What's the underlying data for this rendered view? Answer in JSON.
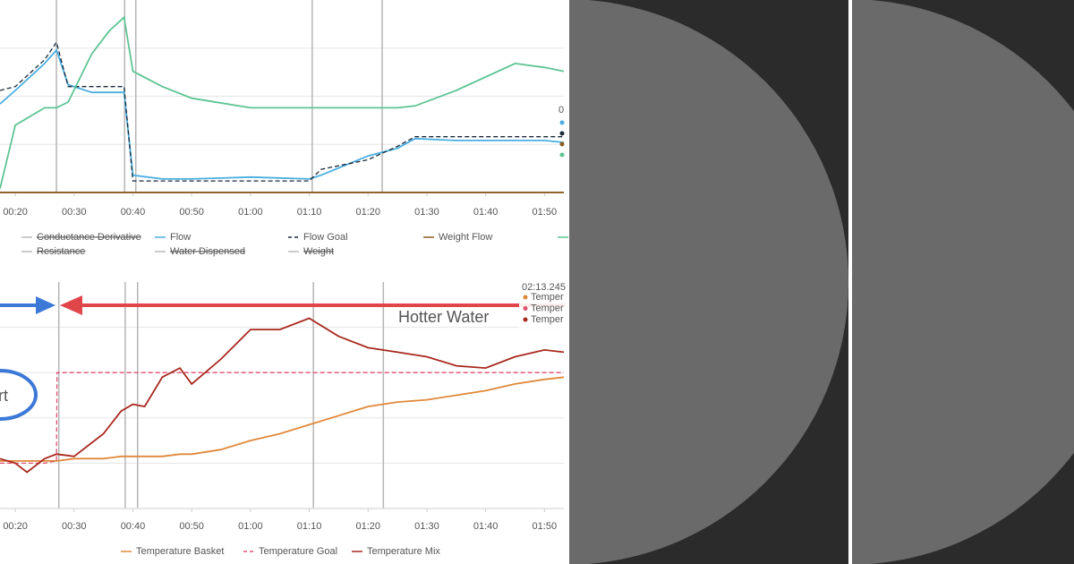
{
  "chart_data": [
    {
      "type": "line",
      "x": [
        17.4,
        20,
        25,
        27,
        29,
        33,
        36,
        38.5,
        40,
        45,
        50,
        60,
        70,
        72,
        80,
        85,
        88,
        95,
        100,
        105,
        110,
        113.3
      ],
      "xlim": [
        17.4,
        113.3
      ],
      "ylim": [
        0,
        100
      ],
      "ygrid": [
        25,
        50,
        75
      ],
      "xticks": [
        {
          "value": 20,
          "label": "00:20"
        },
        {
          "value": 30,
          "label": "00:30"
        },
        {
          "value": 40,
          "label": "00:40"
        },
        {
          "value": 50,
          "label": "00:50"
        },
        {
          "value": 60,
          "label": "01:00"
        },
        {
          "value": 70,
          "label": "01:10"
        },
        {
          "value": 80,
          "label": "01:20"
        },
        {
          "value": 90,
          "label": "01:30"
        },
        {
          "value": 100,
          "label": "01:40"
        },
        {
          "value": 110,
          "label": "01:50"
        }
      ],
      "markers": [
        27.0,
        38.6,
        40.5,
        70.5,
        82.4
      ],
      "series": [
        {
          "name": "Conductance Derivative",
          "color": "#bbbbbb",
          "hidden": true
        },
        {
          "name": "Flow",
          "color": "#4aaee0",
          "values": [
            46,
            53,
            67,
            74,
            56,
            52,
            52,
            52,
            9,
            7,
            7,
            8,
            7,
            9,
            19,
            23,
            28,
            27,
            27,
            27,
            27,
            26
          ]
        },
        {
          "name": "Flow Goal",
          "color": "#1a2a3a",
          "dash": true,
          "values": [
            53,
            55,
            69,
            78,
            55,
            55,
            55,
            55,
            6,
            6,
            6,
            6,
            6,
            12,
            17,
            24,
            29,
            29,
            29,
            29,
            29,
            29
          ]
        },
        {
          "name": "Weight Flow",
          "color": "#8b5a1e",
          "values": [
            0,
            0,
            0,
            0,
            0,
            0,
            0,
            0,
            0,
            0,
            0,
            0,
            0,
            0,
            0,
            0,
            0,
            0,
            0,
            0,
            0,
            0
          ]
        },
        {
          "name": null,
          "color": "#5ec494",
          "values": [
            2,
            35,
            44,
            44,
            47,
            72,
            84,
            91,
            63,
            55,
            49,
            44,
            44,
            44,
            44,
            44,
            45,
            53,
            60,
            67,
            65,
            63
          ]
        },
        {
          "name": "Resistance",
          "color": "#bbbbbb",
          "hidden": true
        },
        {
          "name": "Water Dispensed",
          "color": "#bbbbbb",
          "hidden": true
        },
        {
          "name": "Weight",
          "color": "#bbbbbb",
          "hidden": true
        }
      ],
      "tooltip": {
        "title": "0",
        "colors": [
          "#4aaee0",
          "#1a2a3a",
          "#8b5a1e",
          "#5ec494"
        ]
      }
    },
    {
      "type": "line",
      "x": [
        17.4,
        20,
        22,
        25,
        27,
        27.1,
        30,
        35,
        38,
        40,
        42,
        45,
        48,
        50,
        55,
        60,
        65,
        70,
        75,
        80,
        85,
        90,
        95,
        100,
        105,
        110,
        113.3
      ],
      "xlim": [
        17.4,
        113.3
      ],
      "ylim": [
        0,
        100
      ],
      "ygrid": [
        20,
        40,
        60,
        80
      ],
      "xticks": [
        {
          "value": 20,
          "label": "00:20"
        },
        {
          "value": 30,
          "label": "00:30"
        },
        {
          "value": 40,
          "label": "00:40"
        },
        {
          "value": 50,
          "label": "00:50"
        },
        {
          "value": 60,
          "label": "01:00"
        },
        {
          "value": 70,
          "label": "01:10"
        },
        {
          "value": 80,
          "label": "01:20"
        },
        {
          "value": 90,
          "label": "01:30"
        },
        {
          "value": 100,
          "label": "01:40"
        },
        {
          "value": 110,
          "label": "01:50"
        }
      ],
      "markers": [
        27.4,
        38.7,
        40.8,
        70.7,
        82.6
      ],
      "series": [
        {
          "name": "Temperature Basket",
          "color": "#e0883a",
          "values": [
            21,
            21,
            21,
            21,
            21,
            21,
            22,
            22,
            23,
            23,
            23,
            23,
            24,
            24,
            26,
            30,
            33,
            37,
            41,
            45,
            47,
            48,
            50,
            52,
            55,
            57,
            58
          ]
        },
        {
          "name": "Temperature Goal",
          "color": "#e05070",
          "dash": true,
          "values": [
            20,
            20,
            20,
            20,
            21,
            60,
            60,
            60,
            60,
            60,
            60,
            60,
            60,
            60,
            60,
            60,
            60,
            60,
            60,
            60,
            60,
            60,
            60,
            60,
            60,
            60,
            60
          ]
        },
        {
          "name": "Temperature Mix",
          "color": "#a8281e",
          "values": [
            22,
            20,
            16,
            22,
            24,
            24,
            23,
            33,
            43,
            46,
            45,
            58,
            62,
            55,
            66,
            79,
            79,
            84,
            76,
            71,
            69,
            67,
            63,
            62,
            67,
            70,
            69
          ]
        }
      ],
      "annotations": [
        "Hotter Water",
        "rt"
      ],
      "tooltip": {
        "title": "02:13.245",
        "items": [
          "Temper",
          "Temper",
          "Temper"
        ],
        "colors": [
          "#e0883a",
          "#e05070",
          "#a8281e"
        ]
      }
    }
  ]
}
